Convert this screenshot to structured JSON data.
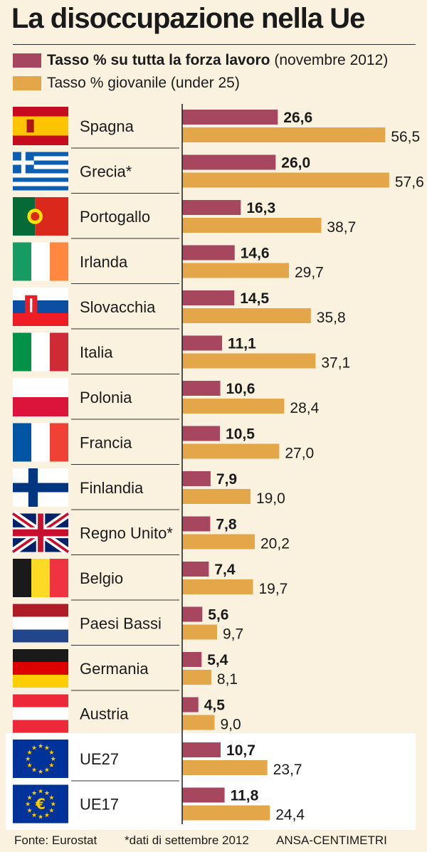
{
  "title": "La disoccupazione nella Ue",
  "legend": [
    {
      "bold": "Tasso % su tutta la forza lavoro",
      "normal": "(novembre 2012)",
      "color": "#a7465f"
    },
    {
      "bold": "",
      "normal": "Tasso % giovanile (under 25)",
      "color": "#e3a74a"
    }
  ],
  "chart_data": {
    "type": "bar",
    "orientation": "horizontal",
    "categories": [
      "Spagna",
      "Grecia*",
      "Portogallo",
      "Irlanda",
      "Slovacchia",
      "Italia",
      "Polonia",
      "Francia",
      "Finlandia",
      "Regno Unito*",
      "Belgio",
      "Paesi Bassi",
      "Germania",
      "Austria",
      "UE27",
      "UE17"
    ],
    "series": [
      {
        "name": "Tasso % su tutta la forza lavoro",
        "color": "#a7465f",
        "values": [
          26.6,
          26.0,
          16.3,
          14.6,
          14.5,
          11.1,
          10.6,
          10.5,
          7.9,
          7.8,
          7.4,
          5.6,
          5.4,
          4.5,
          10.7,
          11.8
        ],
        "labels": [
          "26,6",
          "26,0",
          "16,3",
          "14,6",
          "14,5",
          "11,1",
          "10,6",
          "10,5",
          "7,9",
          "7,8",
          "7,4",
          "5,6",
          "5,4",
          "4,5",
          "10,7",
          "11,8"
        ]
      },
      {
        "name": "Tasso % giovanile (under 25)",
        "color": "#e3a74a",
        "values": [
          56.5,
          57.6,
          38.7,
          29.7,
          35.8,
          37.1,
          28.4,
          27.0,
          19.0,
          20.2,
          19.7,
          9.7,
          8.1,
          9.0,
          23.7,
          24.4
        ],
        "labels": [
          "56,5",
          "57,6",
          "38,7",
          "29,7",
          "35,8",
          "37,1",
          "28,4",
          "27,0",
          "19,0",
          "20,2",
          "19,7",
          "9,7",
          "8,1",
          "9,0",
          "23,7",
          "24,4"
        ]
      }
    ],
    "flags": [
      "es",
      "gr",
      "pt",
      "ie",
      "sk",
      "it",
      "pl",
      "fr",
      "fi",
      "gb",
      "be",
      "nl",
      "de",
      "at",
      "eu",
      "eu17"
    ]
  },
  "footer": {
    "source": "Fonte: Eurostat",
    "note": "*dati di settembre 2012",
    "credit": "ANSA-CENTIMETRI"
  }
}
